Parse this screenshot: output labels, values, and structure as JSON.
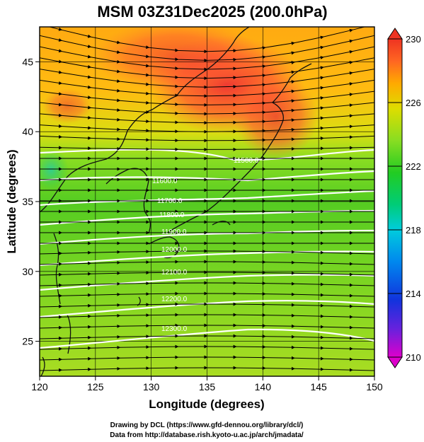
{
  "title": "MSM 03Z31Dec2025 (200.0hPa)",
  "xlabel": "Longitude (degrees)",
  "ylabel": "Latitude  (degrees)",
  "credits": [
    "Drawing by DCL (https://www.gfd-dennou.org/library/dcl/)",
    "Data from http://database.rish.kyoto-u.ac.jp/arch/jmadata/"
  ],
  "map": {
    "lon_range": [
      120,
      150
    ],
    "lat_range": [
      22.5,
      47.5
    ],
    "lon_ticks": [
      "120",
      "125",
      "130",
      "135",
      "140",
      "145",
      "150"
    ],
    "lat_ticks": [
      "25",
      "30",
      "35",
      "40",
      "45"
    ],
    "gridlines": true
  },
  "colorbar": {
    "range": [
      210,
      230
    ],
    "ticks": [
      "210",
      "214",
      "218",
      "222",
      "226",
      "230"
    ],
    "colors": [
      "#dd00cc",
      "#6622dd",
      "#1133dd",
      "#0088ee",
      "#00ccdd",
      "#00cc77",
      "#22cc22",
      "#88dd22",
      "#dddd00",
      "#ffaa00",
      "#ff6622",
      "#ee3322"
    ]
  },
  "contours": {
    "color": "#ffffff",
    "labels": [
      "11500.0",
      "11600.0",
      "11700.0",
      "11800.0",
      "11900.0",
      "12000.0",
      "12100.0",
      "12200.0",
      "12300.0"
    ]
  }
}
